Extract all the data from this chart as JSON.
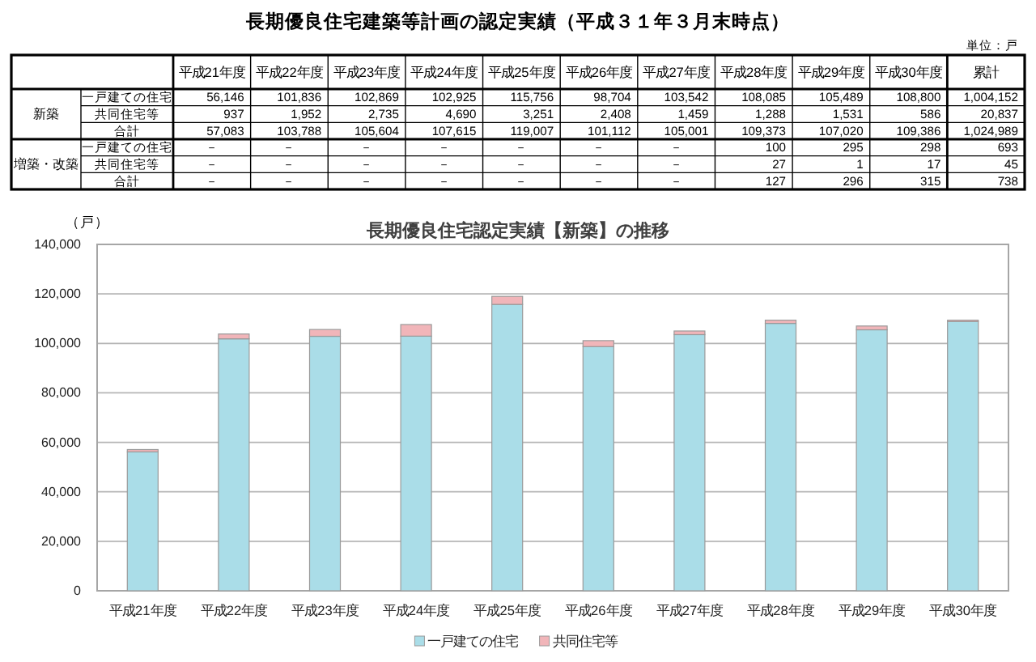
{
  "chart_data": [
    {
      "type": "other",
      "title": "長期優良住宅建築等計画の認定実績（平成３１年３月末時点）",
      "annotations": [
        "単位：戸",
        "新築",
        "増築・改築"
      ],
      "categories": [
        "平成21年度",
        "平成22年度",
        "平成23年度",
        "平成24年度",
        "平成25年度",
        "平成26年度",
        "平成27年度",
        "平成28年度",
        "平成29年度",
        "平成30年度",
        "累計"
      ],
      "y_categories": [
        "一戸建ての住宅",
        "共同住宅等",
        "合計",
        "一戸建ての住宅",
        "共同住宅等",
        "合計"
      ],
      "cell_labels": [
        [
          "56,146",
          "101,836",
          "102,869",
          "102,925",
          "115,756",
          "98,704",
          "103,542",
          "108,085",
          "105,489",
          "108,800",
          "1,004,152"
        ],
        [
          "937",
          "1,952",
          "2,735",
          "4,690",
          "3,251",
          "2,408",
          "1,459",
          "1,288",
          "1,531",
          "586",
          "20,837"
        ],
        [
          "57,083",
          "103,788",
          "105,604",
          "107,615",
          "119,007",
          "101,112",
          "105,001",
          "109,373",
          "107,020",
          "109,386",
          "1,024,989"
        ],
        [
          "－",
          "－",
          "－",
          "－",
          "－",
          "－",
          "－",
          "100",
          "295",
          "298",
          "693"
        ],
        [
          "－",
          "－",
          "－",
          "－",
          "－",
          "－",
          "－",
          "27",
          "1",
          "17",
          "45"
        ],
        [
          "－",
          "－",
          "－",
          "－",
          "－",
          "－",
          "－",
          "127",
          "296",
          "315",
          "738"
        ]
      ]
    },
    {
      "type": "bar",
      "stacked": true,
      "title": "長期優良住宅認定実績【新築】の推移",
      "ylabel": "（戸）",
      "categories": [
        "平成21年度",
        "平成22年度",
        "平成23年度",
        "平成24年度",
        "平成25年度",
        "平成26年度",
        "平成27年度",
        "平成28年度",
        "平成29年度",
        "平成30年度"
      ],
      "series": [
        {
          "name": "一戸建ての住宅",
          "color": "#aadde8",
          "values": [
            56146,
            101836,
            102869,
            102925,
            115756,
            98704,
            103542,
            108085,
            105489,
            108800
          ]
        },
        {
          "name": "共同住宅等",
          "color": "#f1b5b9",
          "values": [
            937,
            1952,
            2735,
            4690,
            3251,
            2408,
            1459,
            1288,
            1531,
            586
          ]
        }
      ],
      "ylim": [
        0,
        140000
      ],
      "yticks": [
        {
          "value": 0,
          "label": "0"
        },
        {
          "value": 20000,
          "label": "20,000"
        },
        {
          "value": 40000,
          "label": "40,000"
        },
        {
          "value": 60000,
          "label": "60,000"
        },
        {
          "value": 80000,
          "label": "80,000"
        },
        {
          "value": 100000,
          "label": "100,000"
        },
        {
          "value": 120000,
          "label": "120,000"
        },
        {
          "value": 140000,
          "label": "140,000"
        }
      ],
      "grid": "y",
      "legend": "bottom"
    }
  ]
}
